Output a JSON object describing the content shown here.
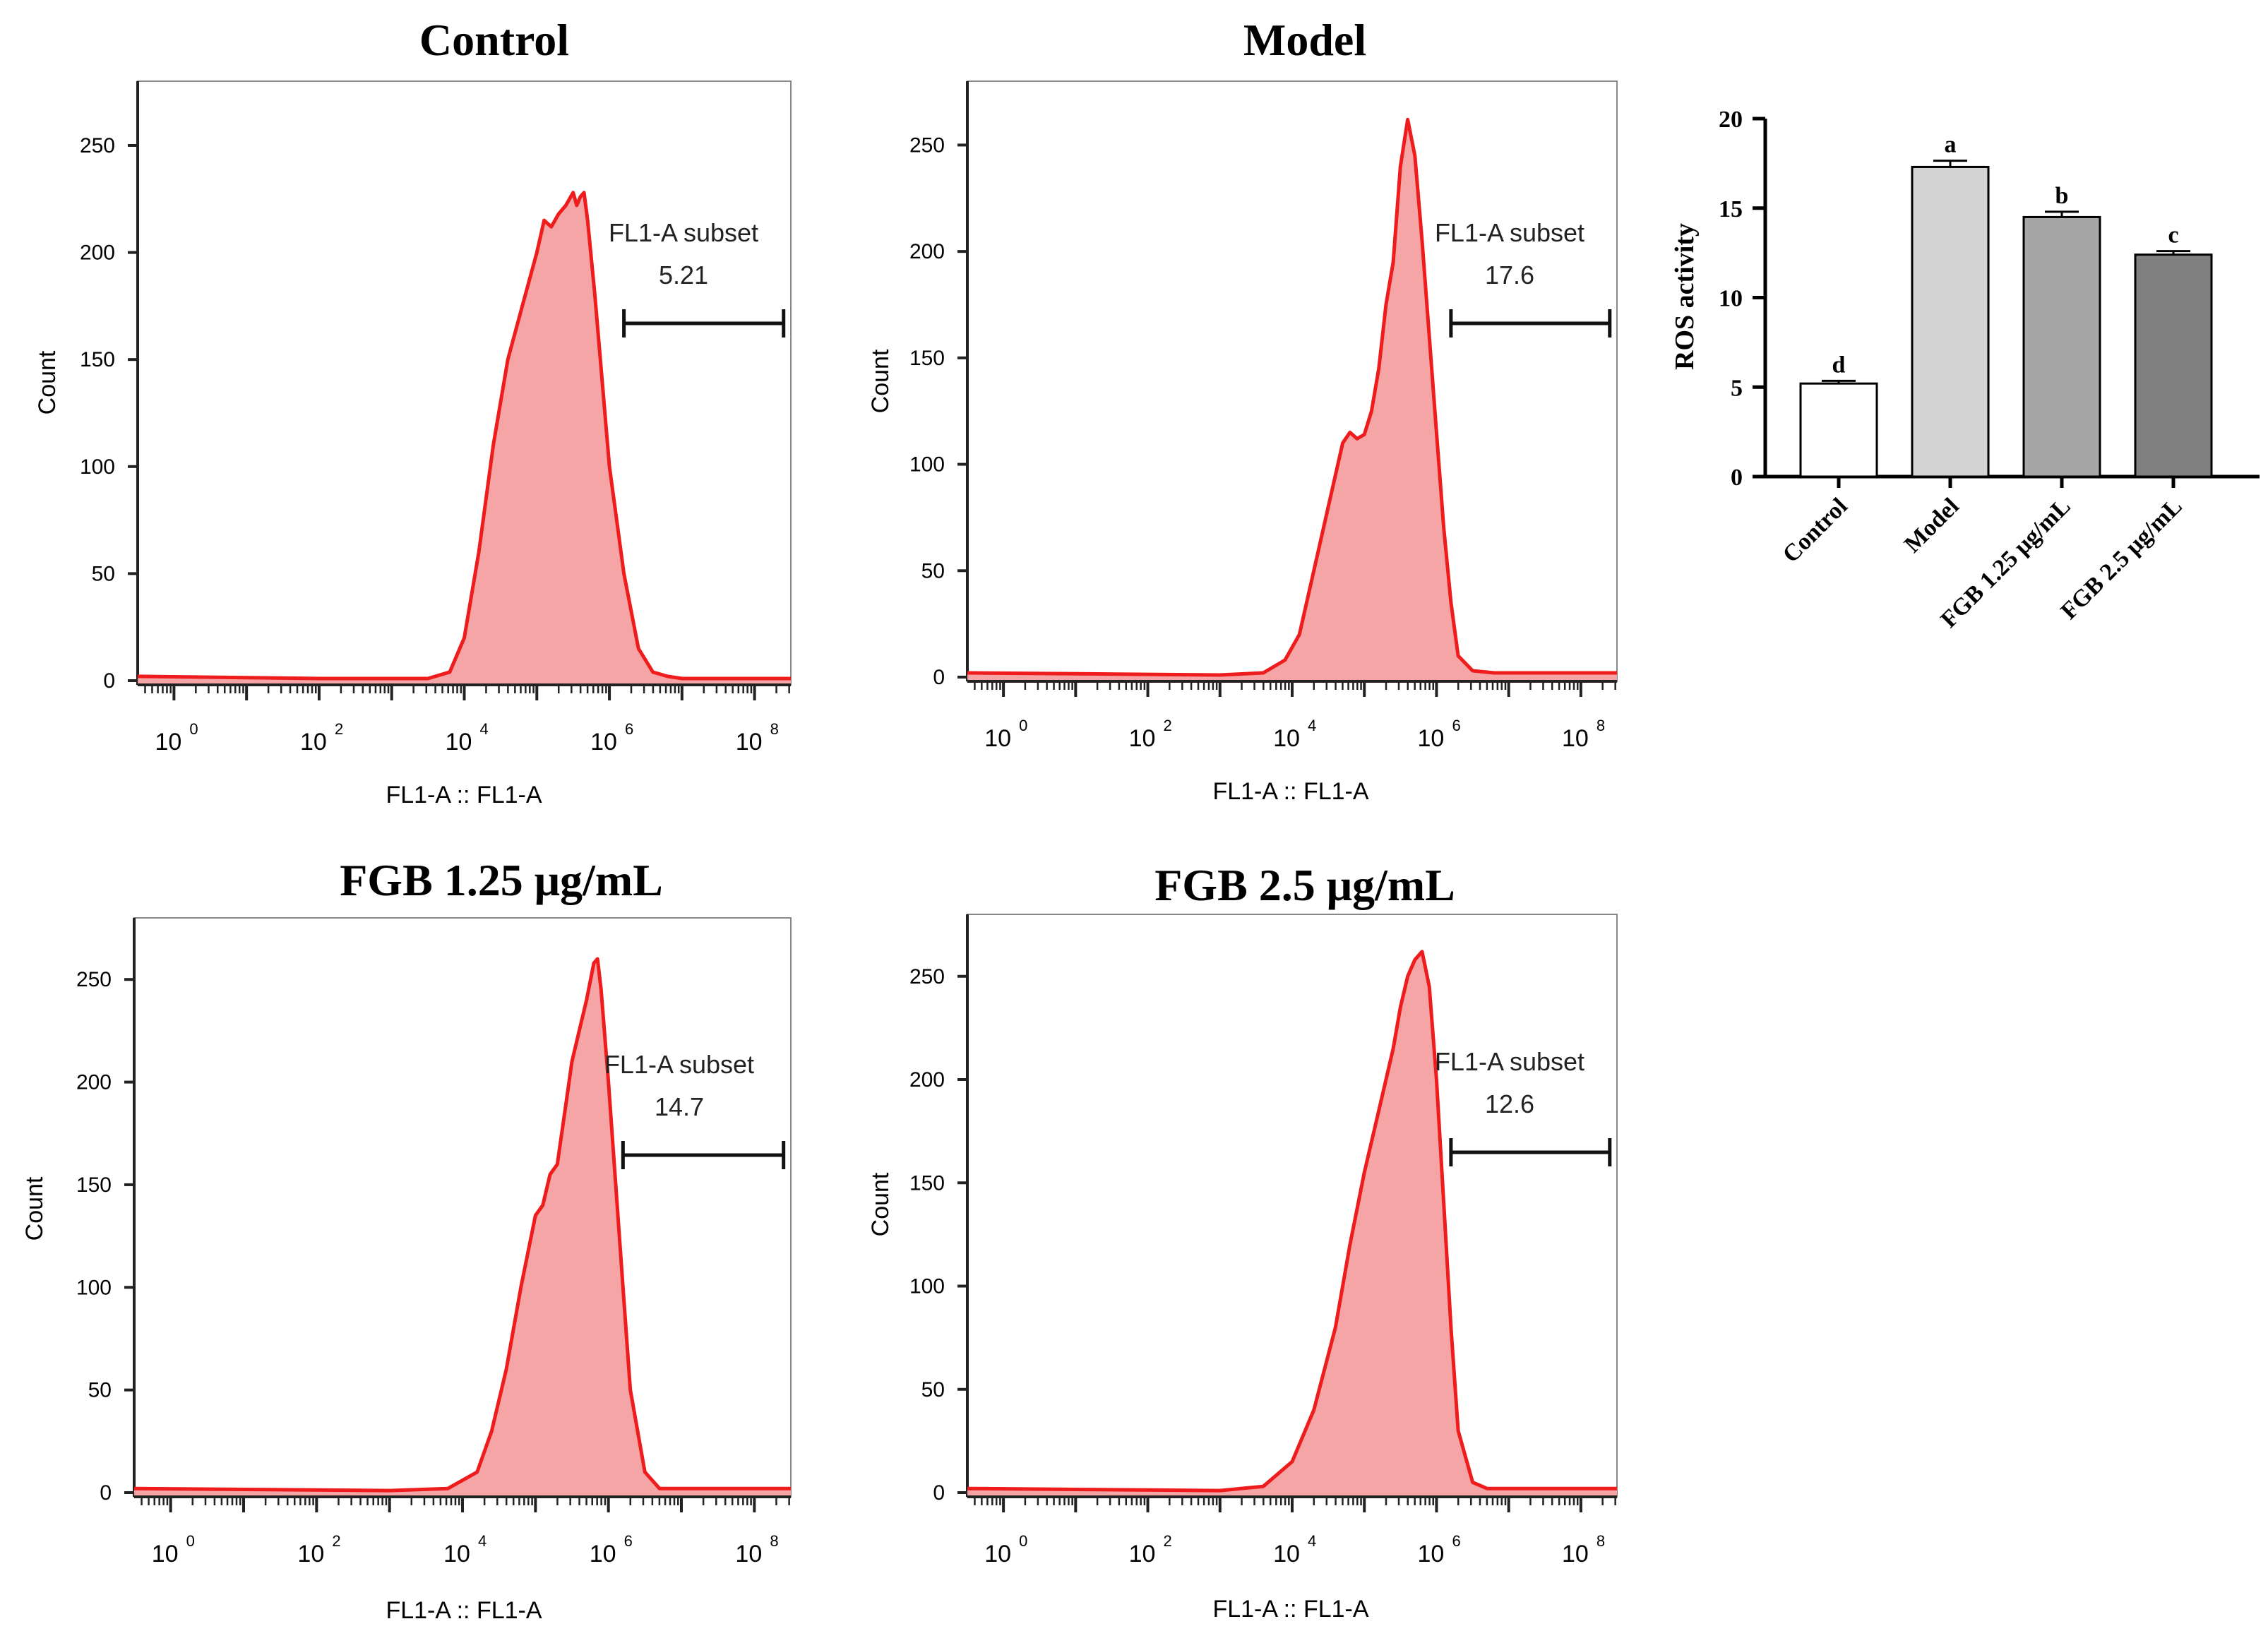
{
  "chart_data": [
    {
      "type": "area",
      "title": "Control",
      "xlabel": "FL1-A :: FL1-A",
      "ylabel": "Count",
      "x_scale": "log10",
      "xlim_log10": [
        -0.5,
        8.5
      ],
      "ylim": [
        0,
        280
      ],
      "yticks": [
        0,
        50,
        100,
        150,
        200,
        250
      ],
      "xtick_base": "10",
      "xtick_exponents": [
        "0",
        "2",
        "4",
        "6",
        "8"
      ],
      "x_log10": [
        -0.5,
        2.0,
        3.5,
        3.8,
        4.0,
        4.2,
        4.4,
        4.6,
        4.8,
        5.0,
        5.1,
        5.2,
        5.3,
        5.4,
        5.5,
        5.55,
        5.6,
        5.65,
        5.7,
        5.8,
        5.9,
        6.0,
        6.2,
        6.4,
        6.6,
        6.8,
        7.0,
        8.5
      ],
      "y": [
        2,
        1,
        1,
        4,
        20,
        60,
        110,
        150,
        175,
        200,
        215,
        212,
        218,
        222,
        228,
        222,
        226,
        228,
        215,
        180,
        140,
        100,
        50,
        15,
        4,
        2,
        1,
        1
      ],
      "gate": {
        "label": "FL1-A subset",
        "value": "5.21",
        "x_from_log10": 6.2,
        "x_to_log10": 8.4
      }
    },
    {
      "type": "area",
      "title": "Model",
      "xlabel": "FL1-A :: FL1-A",
      "ylabel": "Count",
      "x_scale": "log10",
      "xlim_log10": [
        -0.5,
        8.5
      ],
      "ylim": [
        0,
        280
      ],
      "yticks": [
        0,
        50,
        100,
        150,
        200,
        250
      ],
      "xtick_base": "10",
      "xtick_exponents": [
        "0",
        "2",
        "4",
        "6",
        "8"
      ],
      "x_log10": [
        -0.5,
        3.0,
        3.6,
        3.9,
        4.1,
        4.3,
        4.5,
        4.7,
        4.8,
        4.9,
        5.0,
        5.1,
        5.2,
        5.3,
        5.4,
        5.5,
        5.6,
        5.7,
        5.8,
        5.9,
        6.0,
        6.1,
        6.2,
        6.3,
        6.5,
        6.8,
        8.5
      ],
      "y": [
        2,
        1,
        2,
        8,
        20,
        50,
        80,
        110,
        115,
        112,
        114,
        125,
        145,
        175,
        195,
        240,
        262,
        245,
        205,
        160,
        115,
        70,
        35,
        10,
        3,
        2,
        2
      ],
      "gate": {
        "label": "FL1-A subset",
        "value": "17.6",
        "x_from_log10": 6.2,
        "x_to_log10": 8.4
      }
    },
    {
      "type": "area",
      "title": "FGB 1.25 μg/mL",
      "xlabel": "FL1-A :: FL1-A",
      "ylabel": "Count",
      "x_scale": "log10",
      "xlim_log10": [
        -0.5,
        8.5
      ],
      "ylim": [
        0,
        280
      ],
      "yticks": [
        0,
        50,
        100,
        150,
        200,
        250
      ],
      "xtick_base": "10",
      "xtick_exponents": [
        "0",
        "2",
        "4",
        "6",
        "8"
      ],
      "x_log10": [
        -0.5,
        3.0,
        3.8,
        4.2,
        4.4,
        4.6,
        4.8,
        5.0,
        5.1,
        5.2,
        5.3,
        5.4,
        5.5,
        5.6,
        5.7,
        5.8,
        5.85,
        5.9,
        6.0,
        6.1,
        6.2,
        6.3,
        6.5,
        6.7,
        8.5
      ],
      "y": [
        2,
        1,
        2,
        10,
        30,
        60,
        100,
        135,
        140,
        155,
        160,
        185,
        210,
        225,
        240,
        258,
        260,
        245,
        200,
        150,
        100,
        50,
        10,
        2,
        2
      ],
      "gate": {
        "label": "FL1-A subset",
        "value": "14.7",
        "x_from_log10": 6.2,
        "x_to_log10": 8.4
      }
    },
    {
      "type": "area",
      "title": "FGB 2.5 μg/mL",
      "xlabel": "FL1-A :: FL1-A",
      "ylabel": "Count",
      "x_scale": "log10",
      "xlim_log10": [
        -0.5,
        8.5
      ],
      "ylim": [
        0,
        280
      ],
      "yticks": [
        0,
        50,
        100,
        150,
        200,
        250
      ],
      "xtick_base": "10",
      "xtick_exponents": [
        "0",
        "2",
        "4",
        "6",
        "8"
      ],
      "x_log10": [
        -0.5,
        3.0,
        3.6,
        4.0,
        4.3,
        4.6,
        4.8,
        5.0,
        5.2,
        5.4,
        5.5,
        5.6,
        5.7,
        5.8,
        5.9,
        6.0,
        6.1,
        6.2,
        6.3,
        6.5,
        6.7,
        8.5
      ],
      "y": [
        2,
        1,
        3,
        15,
        40,
        80,
        120,
        155,
        185,
        215,
        235,
        250,
        258,
        262,
        245,
        200,
        140,
        80,
        30,
        5,
        2,
        2
      ],
      "gate": {
        "label": "FL1-A subset",
        "value": "12.6",
        "x_from_log10": 6.2,
        "x_to_log10": 8.4
      }
    },
    {
      "type": "bar",
      "title": "",
      "xlabel": "",
      "ylabel": "ROS activity",
      "ylim": [
        0,
        20
      ],
      "yticks": [
        0,
        5,
        10,
        15,
        20
      ],
      "categories": [
        "Control",
        "Model",
        "FGB 1.25 μg/mL",
        "FGB 2.5 μg/mL"
      ],
      "values": [
        5.2,
        17.3,
        14.5,
        12.4
      ],
      "errors": [
        0.15,
        0.35,
        0.3,
        0.2
      ],
      "significance": [
        "d",
        "a",
        "b",
        "c"
      ],
      "colors": [
        "#ffffff",
        "#d3d3d3",
        "#a6a6a6",
        "#808080"
      ]
    }
  ]
}
